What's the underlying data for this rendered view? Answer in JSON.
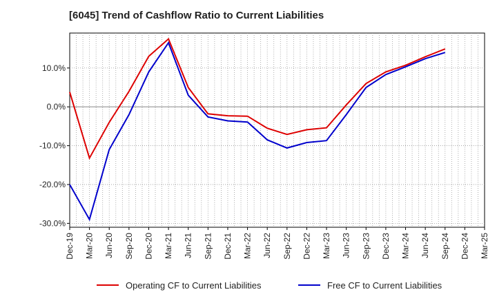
{
  "chart_data": {
    "type": "line",
    "title": "[6045]  Trend of Cashflow Ratio to Current Liabilities",
    "xlabel": "",
    "ylabel": "",
    "ylim": [
      -31,
      19
    ],
    "y_ticks": [
      10,
      0,
      -10,
      -20,
      -30
    ],
    "y_tick_labels": [
      "10.0%",
      "0.0%",
      "-10.0%",
      "-20.0%",
      "-30.0%"
    ],
    "x_tick_labels": [
      "Dec-19",
      "Mar-20",
      "Jun-20",
      "Sep-20",
      "Dec-20",
      "Mar-21",
      "Jun-21",
      "Sep-21",
      "Dec-21",
      "Mar-22",
      "Jun-22",
      "Sep-22",
      "Dec-22",
      "Mar-23",
      "Jun-23",
      "Sep-23",
      "Dec-23",
      "Mar-24",
      "Jun-24",
      "Sep-24",
      "Dec-24",
      "Mar-25"
    ],
    "grid": true,
    "legend_position": "bottom",
    "series": [
      {
        "name": "Operating CF to Current Liabilities",
        "color": "#dd0000",
        "values": [
          3.8,
          -13.2,
          -4.0,
          4.0,
          13.0,
          17.5,
          5.0,
          -1.8,
          -2.3,
          -2.4,
          -5.5,
          -7.1,
          -5.9,
          -5.4,
          0.5,
          6.0,
          9.0,
          10.7,
          12.9,
          14.9,
          null,
          null
        ]
      },
      {
        "name": "Free CF to Current Liabilities",
        "color": "#0000cc",
        "values": [
          -20.0,
          -29.0,
          -11.0,
          -2.0,
          9.0,
          16.5,
          3.0,
          -2.6,
          -3.6,
          -3.9,
          -8.5,
          -10.6,
          -9.2,
          -8.7,
          -2.0,
          5.0,
          8.3,
          10.3,
          12.4,
          14.0,
          null,
          null
        ]
      }
    ]
  }
}
